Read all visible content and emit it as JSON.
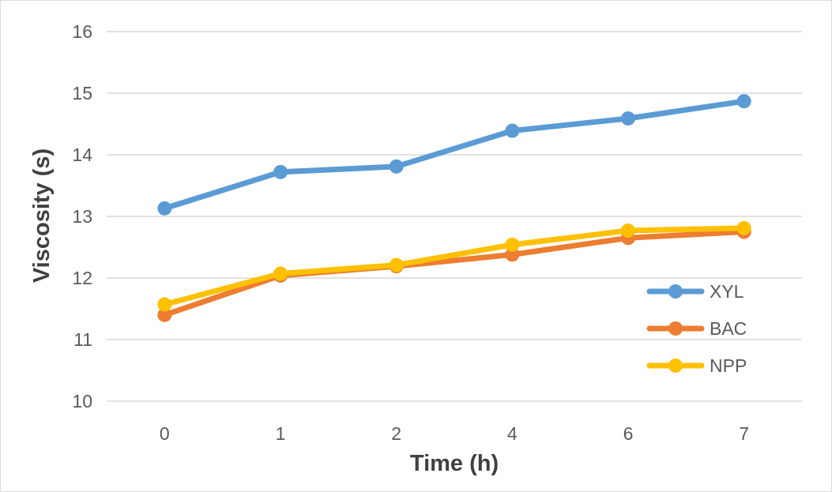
{
  "chart_data": {
    "type": "line",
    "title": "",
    "xlabel": "Time (h)",
    "ylabel": "Viscosity (s)",
    "categories": [
      "0",
      "1",
      "2",
      "4",
      "6",
      "7"
    ],
    "ylim": [
      10,
      16
    ],
    "yticks": [
      "10",
      "11",
      "12",
      "13",
      "14",
      "15",
      "16"
    ],
    "grid": "horizontal",
    "legend_position": "right",
    "series": [
      {
        "name": "XYL",
        "color": "#5b9bd5",
        "values": [
          13.13,
          13.72,
          13.81,
          14.39,
          14.59,
          14.87
        ]
      },
      {
        "name": "BAC",
        "color": "#ed7d31",
        "values": [
          11.4,
          12.04,
          12.19,
          12.38,
          12.65,
          12.75
        ]
      },
      {
        "name": "NPP",
        "color": "#ffc000",
        "values": [
          11.57,
          12.07,
          12.21,
          12.54,
          12.77,
          12.81
        ]
      }
    ]
  }
}
